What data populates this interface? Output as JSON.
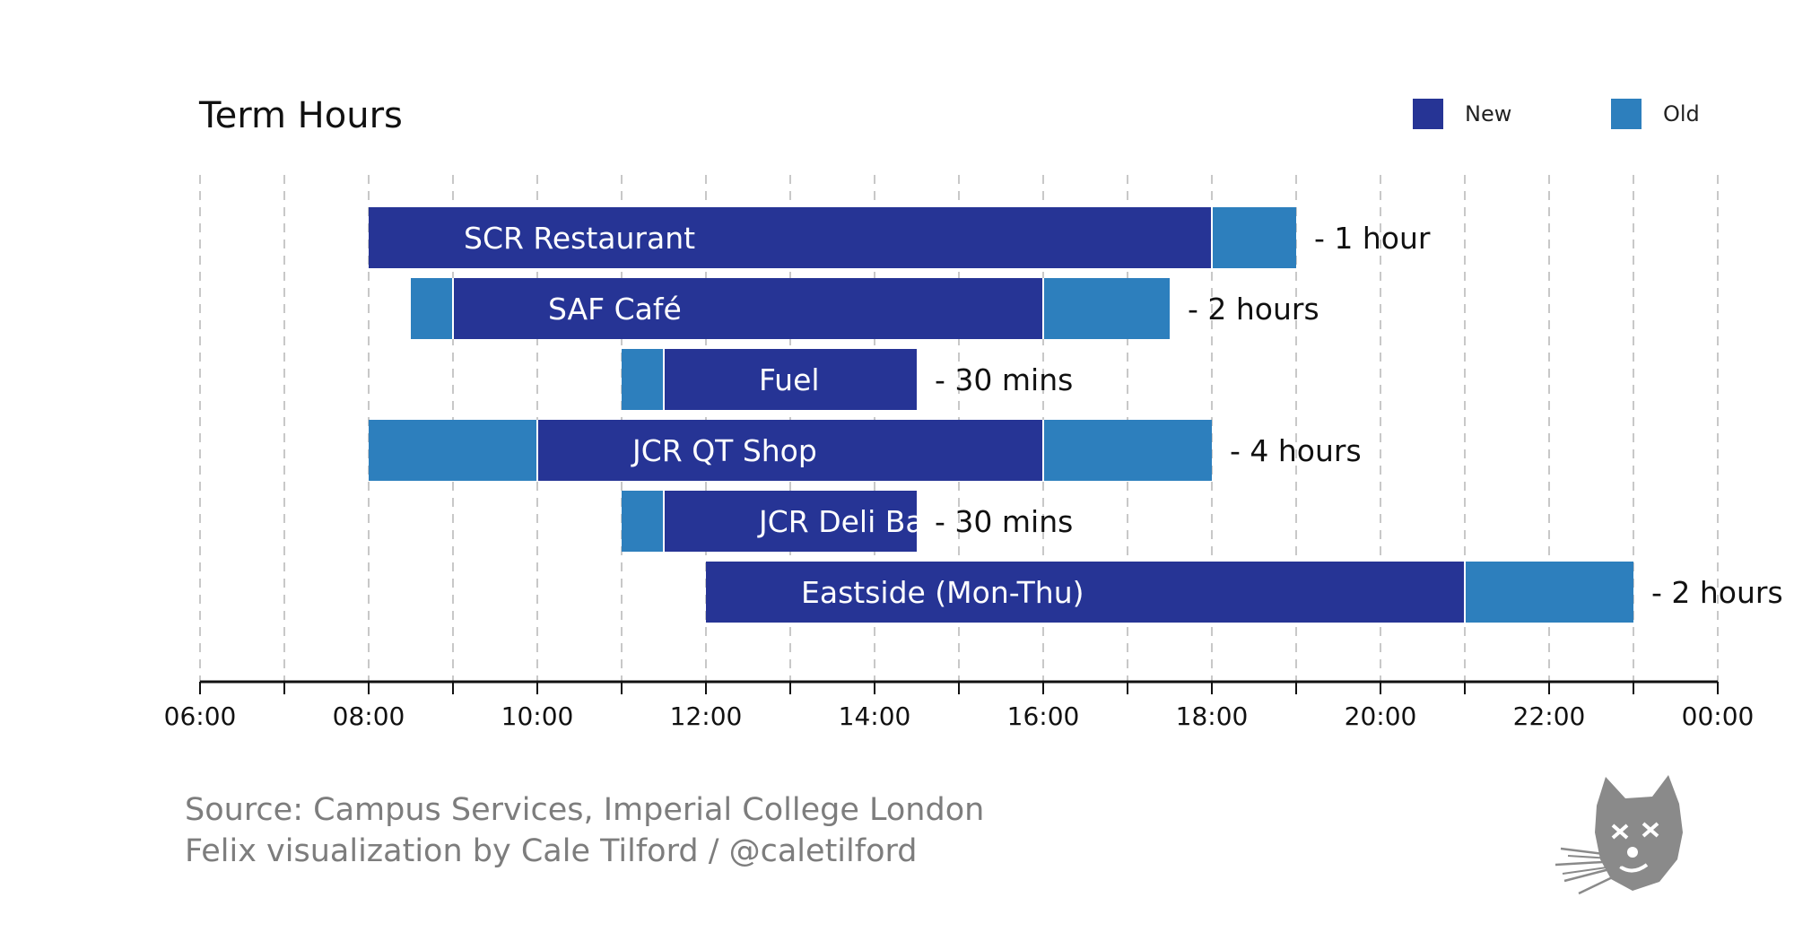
{
  "colors": {
    "new": "#263495",
    "old": "#2d7fbd",
    "grid": "#c8c8c8",
    "axis": "#111111",
    "label_on_bar": "#ffffff",
    "caption": "#7d7d7d"
  },
  "legend": {
    "new_label": "New",
    "old_label": "Old"
  },
  "source": {
    "line1": "Source: Campus Services, Imperial College London",
    "line2": "Felix visualization by Cale Tilford / @caletilford"
  },
  "chart_data": {
    "type": "gantt",
    "title": "Term Hours",
    "xlim": [
      6,
      24
    ],
    "ticks": [
      {
        "value": 6,
        "label": "06:00"
      },
      {
        "value": 7,
        "label": ""
      },
      {
        "value": 8,
        "label": "08:00"
      },
      {
        "value": 9,
        "label": ""
      },
      {
        "value": 10,
        "label": "10:00"
      },
      {
        "value": 11,
        "label": ""
      },
      {
        "value": 12,
        "label": "12:00"
      },
      {
        "value": 13,
        "label": ""
      },
      {
        "value": 14,
        "label": "14:00"
      },
      {
        "value": 15,
        "label": ""
      },
      {
        "value": 16,
        "label": "16:00"
      },
      {
        "value": 17,
        "label": ""
      },
      {
        "value": 18,
        "label": "18:00"
      },
      {
        "value": 19,
        "label": ""
      },
      {
        "value": 20,
        "label": "20:00"
      },
      {
        "value": 21,
        "label": ""
      },
      {
        "value": 22,
        "label": "22:00"
      },
      {
        "value": 23,
        "label": ""
      },
      {
        "value": 24,
        "label": "00:00"
      }
    ],
    "grid": true,
    "legend_position": "top-right",
    "rows": [
      {
        "name": "SCR Restaurant",
        "new": [
          8,
          18
        ],
        "old": [
          8,
          19
        ],
        "change": "- 1 hour"
      },
      {
        "name": "SAF Café",
        "new": [
          9,
          16
        ],
        "old": [
          8.5,
          17.5
        ],
        "change": "- 2 hours"
      },
      {
        "name": "Fuel",
        "new": [
          11.5,
          14.5
        ],
        "old": [
          11,
          14.5
        ],
        "change": "- 30 mins"
      },
      {
        "name": "JCR QT Shop",
        "new": [
          10,
          16
        ],
        "old": [
          8,
          18
        ],
        "change": "- 4 hours"
      },
      {
        "name": "JCR Deli Bar",
        "new": [
          11.5,
          14.5
        ],
        "old": [
          11,
          14.5
        ],
        "change": "- 30 mins"
      },
      {
        "name": "Eastside (Mon-Thu)",
        "new": [
          12,
          21
        ],
        "old": [
          12,
          23
        ],
        "change": "- 2 hours"
      }
    ]
  }
}
